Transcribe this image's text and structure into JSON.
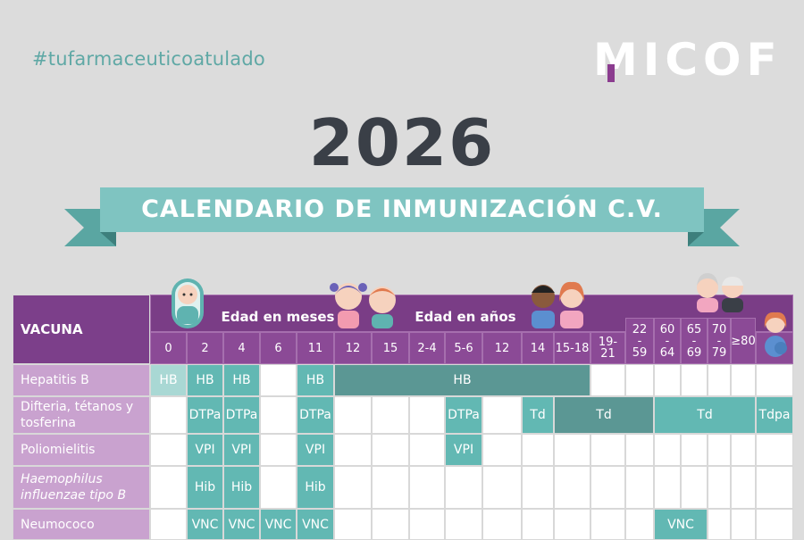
{
  "hashtag": "#tufarmaceuticoatulado",
  "logo": "MICOF",
  "year": "2026",
  "banner": "CALENDARIO DE INMUNIZACIÓN C.V.",
  "table": {
    "vacuna_header": "VACUNA",
    "group_months": "Edad en meses",
    "group_years": "Edad en años",
    "columns": [
      "0",
      "2",
      "4",
      "6",
      "11",
      "12",
      "15",
      "2-4",
      "5-6",
      "12",
      "14",
      "15-18",
      "19-21",
      "22\n-\n59",
      "60\n-\n64",
      "65\n-\n69",
      "70\n-\n79",
      "≥80"
    ],
    "rows": [
      {
        "name": "Hepatitis B",
        "cells": [
          {
            "span": [
              0,
              1
            ],
            "text": "HB",
            "tone": "light"
          },
          {
            "span": [
              1,
              2
            ],
            "text": "HB",
            "tone": "teal"
          },
          {
            "span": [
              2,
              3
            ],
            "text": "HB",
            "tone": "teal"
          },
          {
            "span": [
              4,
              5
            ],
            "text": "HB",
            "tone": "teal"
          },
          {
            "span": [
              5,
              12
            ],
            "text": "HB",
            "tone": "dark"
          }
        ]
      },
      {
        "name": "Difteria, tétanos y\ntosferina",
        "cells": [
          {
            "span": [
              1,
              2
            ],
            "text": "DTPa",
            "tone": "teal"
          },
          {
            "span": [
              2,
              3
            ],
            "text": "DTPa",
            "tone": "teal"
          },
          {
            "span": [
              4,
              5
            ],
            "text": "DTPa",
            "tone": "teal"
          },
          {
            "span": [
              8,
              9
            ],
            "text": "DTPa",
            "tone": "teal"
          },
          {
            "span": [
              10,
              11
            ],
            "text": "Td",
            "tone": "teal"
          },
          {
            "span": [
              11,
              14
            ],
            "text": "Td",
            "tone": "dark"
          },
          {
            "span": [
              14,
              18
            ],
            "text": "Td",
            "tone": "teal"
          },
          {
            "span": [
              18,
              19
            ],
            "text": "Tdpa",
            "tone": "teal"
          }
        ]
      },
      {
        "name": "Poliomielitis",
        "cells": [
          {
            "span": [
              1,
              2
            ],
            "text": "VPI",
            "tone": "teal"
          },
          {
            "span": [
              2,
              3
            ],
            "text": "VPI",
            "tone": "teal"
          },
          {
            "span": [
              4,
              5
            ],
            "text": "VPI",
            "tone": "teal"
          },
          {
            "span": [
              8,
              9
            ],
            "text": "VPI",
            "tone": "teal"
          }
        ]
      },
      {
        "name": "Haemophilus\ninfluenzae tipo B",
        "italic": true,
        "cells": [
          {
            "span": [
              1,
              2
            ],
            "text": "Hib",
            "tone": "teal"
          },
          {
            "span": [
              2,
              3
            ],
            "text": "Hib",
            "tone": "teal"
          },
          {
            "span": [
              4,
              5
            ],
            "text": "Hib",
            "tone": "teal"
          }
        ]
      },
      {
        "name": "Neumococo",
        "cells": [
          {
            "span": [
              1,
              2
            ],
            "text": "VNC",
            "tone": "teal"
          },
          {
            "span": [
              2,
              3
            ],
            "text": "VNC",
            "tone": "teal"
          },
          {
            "span": [
              3,
              4
            ],
            "text": "VNC",
            "tone": "teal"
          },
          {
            "span": [
              4,
              5
            ],
            "text": "VNC",
            "tone": "teal"
          },
          {
            "span": [
              14,
              16
            ],
            "text": "VNC",
            "tone": "teal"
          }
        ]
      }
    ]
  },
  "colors": {
    "purple": "#8b4a96",
    "teal": "#62b8b3",
    "teal_dark": "#5b9794",
    "teal_light": "#a9d8d4",
    "text_dark": "#3a3f47"
  },
  "icons": [
    "baby-icon",
    "children-icon",
    "teenagers-icon",
    "elderly-couple-icon",
    "pregnant-woman-icon"
  ]
}
